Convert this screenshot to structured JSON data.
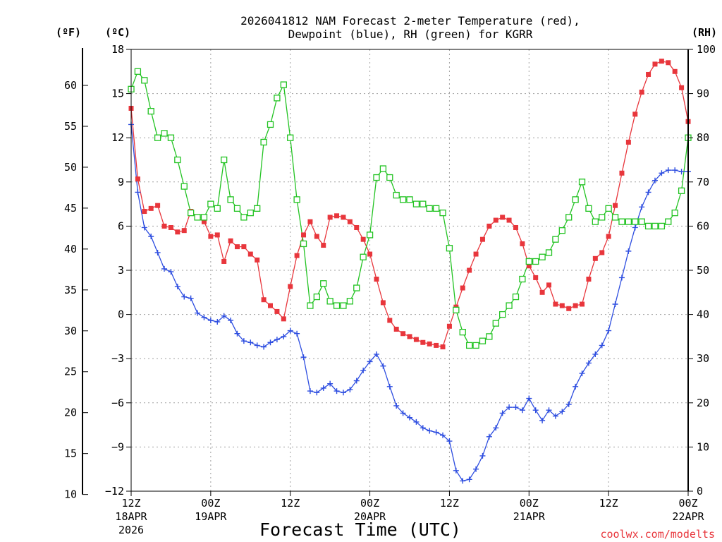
{
  "chart_data": {
    "type": "line",
    "title_lines": [
      "2026041812 NAM Forecast 2-meter Temperature (red),",
      "Dewpoint (blue), RH (green) for KGRR"
    ],
    "xlabel": "Forecast Time (UTC)",
    "credit": "coolwx.com/modelts",
    "units": {
      "fahrenheit": "(ºF)",
      "celsius": "(ºC)",
      "rh": "(RH)"
    },
    "x_hours_range": [
      0,
      84
    ],
    "x_ticks": [
      {
        "hour": 0,
        "label": "12Z",
        "date": "18APR",
        "year": "2026"
      },
      {
        "hour": 12,
        "label": "00Z",
        "date": "19APR",
        "year": ""
      },
      {
        "hour": 24,
        "label": "12Z",
        "date": "",
        "year": ""
      },
      {
        "hour": 36,
        "label": "00Z",
        "date": "20APR",
        "year": ""
      },
      {
        "hour": 48,
        "label": "12Z",
        "date": "",
        "year": ""
      },
      {
        "hour": 60,
        "label": "00Z",
        "date": "21APR",
        "year": ""
      },
      {
        "hour": 72,
        "label": "12Z",
        "date": "",
        "year": ""
      },
      {
        "hour": 84,
        "label": "00Z",
        "date": "22APR",
        "year": ""
      }
    ],
    "y_celsius": {
      "range": [
        -12,
        18
      ],
      "ticks": [
        "18",
        "15",
        "12",
        "9",
        "6",
        "3",
        "0",
        "−3",
        "−6",
        "−9",
        "−12"
      ],
      "tick_values": [
        18,
        15,
        12,
        9,
        6,
        3,
        0,
        -3,
        -6,
        -9,
        -12
      ]
    },
    "y_fahrenheit": {
      "ticks": [
        "60",
        "55",
        "50",
        "45",
        "40",
        "35",
        "30",
        "25",
        "20",
        "15",
        "10"
      ],
      "tick_values": [
        60,
        55,
        50,
        45,
        40,
        35,
        30,
        25,
        20,
        15,
        10
      ]
    },
    "y_rh": {
      "range": [
        0,
        100
      ],
      "ticks": [
        "100",
        "90",
        "80",
        "70",
        "60",
        "50",
        "40",
        "30",
        "20",
        "10",
        "0"
      ],
      "tick_values": [
        100,
        90,
        80,
        70,
        60,
        50,
        40,
        30,
        20,
        10,
        0
      ]
    },
    "series": [
      {
        "name": "2-meter Temperature",
        "axis": "celsius",
        "color": "#e8363c",
        "marker": "filled-square",
        "hours": [
          0,
          1,
          2,
          3,
          4,
          5,
          6,
          7,
          8,
          9,
          10,
          11,
          12,
          13,
          14,
          15,
          16,
          17,
          18,
          19,
          20,
          21,
          22,
          23,
          24,
          25,
          26,
          27,
          28,
          29,
          30,
          31,
          32,
          33,
          34,
          35,
          36,
          37,
          38,
          39,
          40,
          41,
          42,
          43,
          44,
          45,
          46,
          47,
          48,
          49,
          50,
          51,
          52,
          53,
          54,
          55,
          56,
          57,
          58,
          59,
          60,
          61,
          62,
          63,
          64,
          65,
          66,
          67,
          68,
          69,
          70,
          71,
          72,
          73,
          74,
          75,
          76,
          77,
          78,
          79,
          80,
          81,
          82,
          83,
          84
        ],
        "values": [
          14.0,
          9.2,
          7.0,
          7.2,
          7.4,
          6.0,
          5.9,
          5.6,
          5.7,
          7.0,
          6.6,
          6.3,
          5.3,
          5.4,
          3.6,
          5.0,
          4.6,
          4.6,
          4.1,
          3.7,
          1.0,
          0.6,
          0.2,
          -0.3,
          1.9,
          4.0,
          5.4,
          6.3,
          5.3,
          4.7,
          6.6,
          6.7,
          6.6,
          6.3,
          5.9,
          5.1,
          4.1,
          2.4,
          0.8,
          -0.4,
          -1.0,
          -1.3,
          -1.5,
          -1.7,
          -1.9,
          -2.0,
          -2.1,
          -2.2,
          -0.8,
          0.5,
          1.8,
          3.0,
          4.1,
          5.1,
          6.0,
          6.4,
          6.6,
          6.4,
          5.9,
          4.8,
          3.3,
          2.5,
          1.5,
          2.0,
          0.7,
          0.6,
          0.4,
          0.6,
          0.7,
          2.4,
          3.8,
          4.2,
          5.3,
          7.4,
          9.6,
          11.7,
          13.6,
          15.1,
          16.3,
          17.0,
          17.2,
          17.1,
          16.5,
          15.4,
          13.1
        ]
      },
      {
        "name": "Dewpoint",
        "axis": "celsius",
        "color": "#2d4de0",
        "marker": "plus",
        "hours": [
          0,
          1,
          2,
          3,
          4,
          5,
          6,
          7,
          8,
          9,
          10,
          11,
          12,
          13,
          14,
          15,
          16,
          17,
          18,
          19,
          20,
          21,
          22,
          23,
          24,
          25,
          26,
          27,
          28,
          29,
          30,
          31,
          32,
          33,
          34,
          35,
          36,
          37,
          38,
          39,
          40,
          41,
          42,
          43,
          44,
          45,
          46,
          47,
          48,
          49,
          50,
          51,
          52,
          53,
          54,
          55,
          56,
          57,
          58,
          59,
          60,
          61,
          62,
          63,
          64,
          65,
          66,
          67,
          68,
          69,
          70,
          71,
          72,
          73,
          74,
          75,
          76,
          77,
          78,
          79,
          80,
          81,
          82,
          83,
          84
        ],
        "values": [
          12.9,
          8.3,
          5.9,
          5.3,
          4.2,
          3.1,
          2.9,
          1.9,
          1.2,
          1.1,
          0.1,
          -0.2,
          -0.4,
          -0.5,
          -0.1,
          -0.4,
          -1.3,
          -1.8,
          -1.9,
          -2.1,
          -2.2,
          -1.9,
          -1.7,
          -1.5,
          -1.1,
          -1.3,
          -2.9,
          -5.2,
          -5.3,
          -5.0,
          -4.7,
          -5.2,
          -5.3,
          -5.1,
          -4.5,
          -3.8,
          -3.2,
          -2.7,
          -3.5,
          -4.9,
          -6.2,
          -6.7,
          -7.0,
          -7.3,
          -7.7,
          -7.9,
          -8.0,
          -8.2,
          -8.6,
          -10.6,
          -11.3,
          -11.2,
          -10.5,
          -9.6,
          -8.3,
          -7.7,
          -6.7,
          -6.3,
          -6.3,
          -6.5,
          -5.7,
          -6.5,
          -7.2,
          -6.5,
          -6.9,
          -6.6,
          -6.1,
          -4.9,
          -4.0,
          -3.3,
          -2.7,
          -2.1,
          -1.1,
          0.7,
          2.5,
          4.3,
          5.9,
          7.3,
          8.3,
          9.1,
          9.6,
          9.8,
          9.8,
          9.7,
          9.7
        ]
      },
      {
        "name": "Relative Humidity",
        "axis": "rh",
        "color": "#22c322",
        "marker": "open-square",
        "hours": [
          0,
          1,
          2,
          3,
          4,
          5,
          6,
          7,
          8,
          9,
          10,
          11,
          12,
          13,
          14,
          15,
          16,
          17,
          18,
          19,
          20,
          21,
          22,
          23,
          24,
          25,
          26,
          27,
          28,
          29,
          30,
          31,
          32,
          33,
          34,
          35,
          36,
          37,
          38,
          39,
          40,
          41,
          42,
          43,
          44,
          45,
          46,
          47,
          48,
          49,
          50,
          51,
          52,
          53,
          54,
          55,
          56,
          57,
          58,
          59,
          60,
          61,
          62,
          63,
          64,
          65,
          66,
          67,
          68,
          69,
          70,
          71,
          72,
          73,
          74,
          75,
          76,
          77,
          78,
          79,
          80,
          81,
          82,
          83,
          84
        ],
        "values": [
          91,
          95,
          93,
          86,
          80,
          81,
          80,
          75,
          69,
          63,
          62,
          62,
          65,
          64,
          75,
          66,
          64,
          62,
          63,
          64,
          79,
          83,
          89,
          92,
          80,
          66,
          56,
          42,
          44,
          47,
          43,
          42,
          42,
          43,
          46,
          53,
          58,
          71,
          73,
          71,
          67,
          66,
          66,
          65,
          65,
          64,
          64,
          63,
          55,
          41,
          36,
          33,
          33,
          34,
          35,
          38,
          40,
          42,
          44,
          48,
          52,
          52,
          53,
          54,
          57,
          59,
          62,
          66,
          70,
          64,
          61,
          62,
          64,
          62,
          61,
          61,
          61,
          61,
          60,
          60,
          60,
          61,
          63,
          68,
          80
        ]
      }
    ]
  }
}
